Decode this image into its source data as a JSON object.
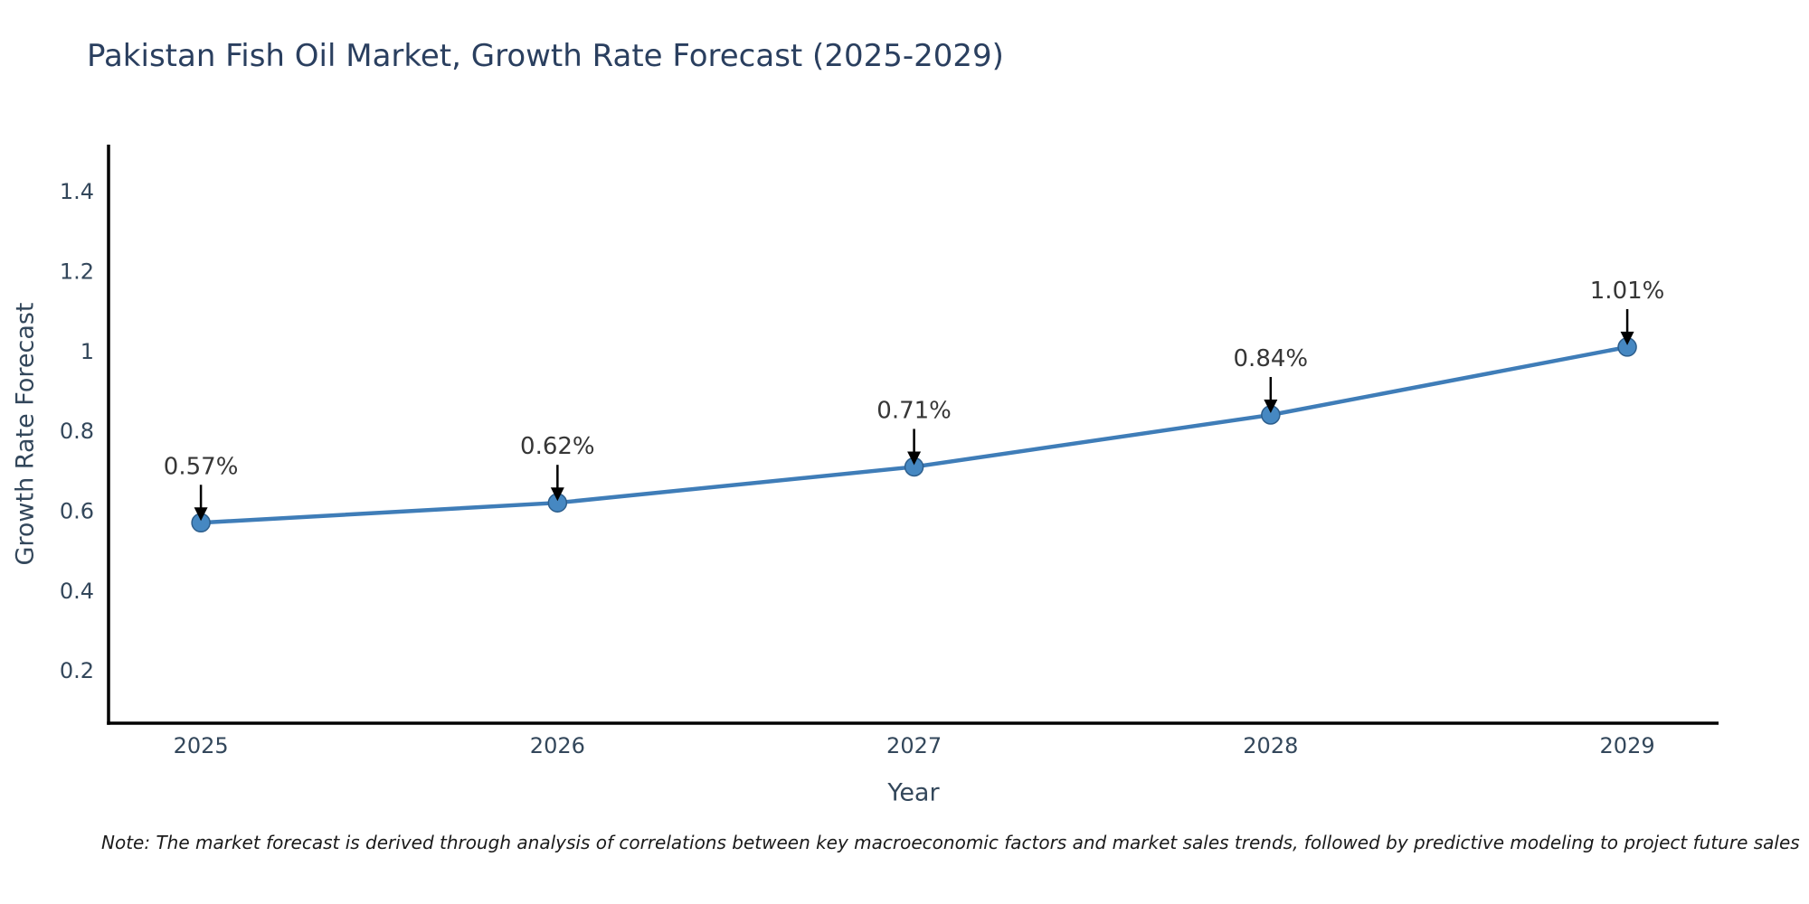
{
  "chart_data": {
    "type": "line",
    "title": "Pakistan Fish Oil Market, Growth Rate Forecast (2025-2029)",
    "xlabel": "Year",
    "ylabel": "Growth Rate Forecast",
    "categories": [
      "2025",
      "2026",
      "2027",
      "2028",
      "2029"
    ],
    "x": [
      2025,
      2026,
      2027,
      2028,
      2029
    ],
    "values": [
      0.57,
      0.62,
      0.71,
      0.84,
      1.01
    ],
    "annotations": [
      "0.57%",
      "0.62%",
      "0.71%",
      "0.84%",
      "1.01%"
    ],
    "y_ticks": [
      0.2,
      0.4,
      0.6,
      0.8,
      1,
      1.2,
      1.4
    ],
    "xlim": [
      2024.741,
      2029.256
    ],
    "ylim": [
      0.068,
      1.517
    ],
    "grid": false,
    "legend": false,
    "marker": "circle",
    "annotation_arrow": "down-arrow",
    "colors": {
      "line": "#3f7db8",
      "marker_fill": "#4688c2",
      "marker_edge": "#2d5e8c",
      "axis": "#000000",
      "title_text": "#2a3f5f",
      "tick_text": "#33475b",
      "annotation_text": "#363636",
      "arrow": "#000000"
    }
  },
  "note_text": "Note: The market forecast is derived through analysis of correlations between key macroeconomic factors and market sales trends, followed by predictive modeling to project future sales"
}
